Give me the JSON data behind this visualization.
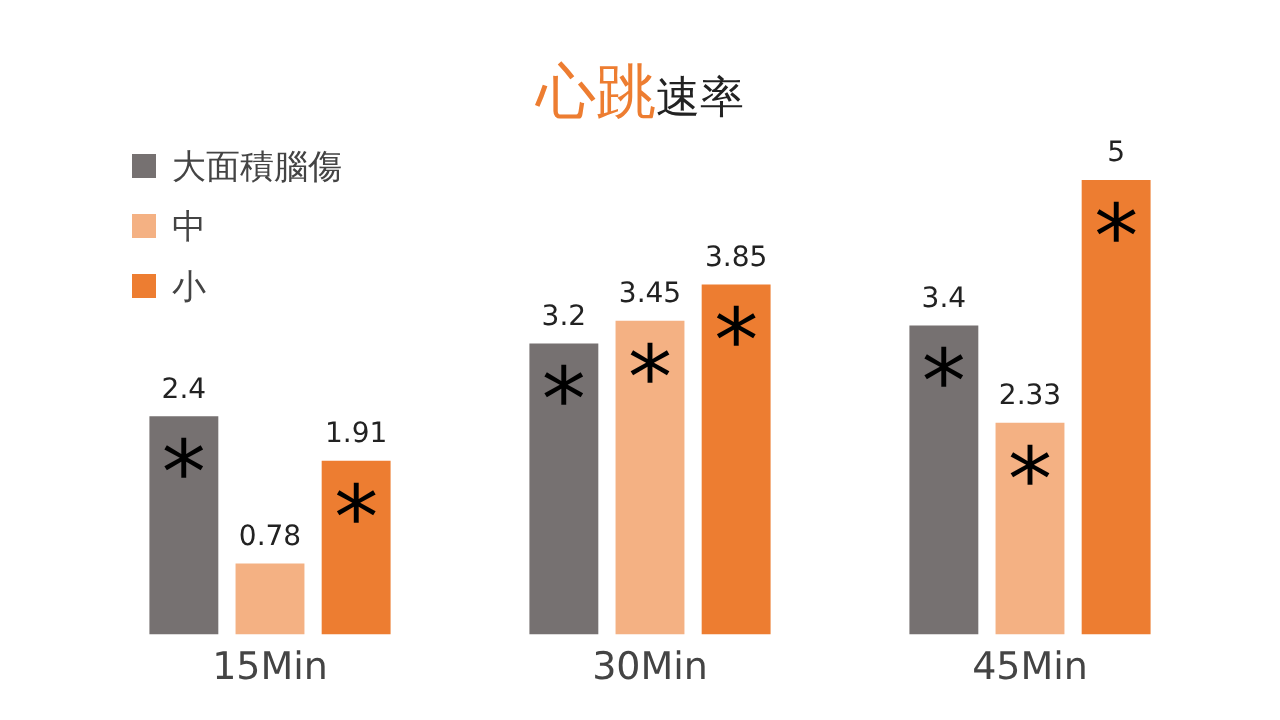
{
  "chart_data": {
    "type": "bar",
    "title": "心跳速率",
    "categories": [
      "15Min",
      "30Min",
      "45Min"
    ],
    "series": [
      {
        "name": "大面積腦傷",
        "color": "#767171",
        "values": [
          2.4,
          3.2,
          3.4
        ]
      },
      {
        "name": "中",
        "color": "#f4b183",
        "values": [
          0.78,
          3.45,
          2.33
        ]
      },
      {
        "name": "小",
        "color": "#ed7d31",
        "values": [
          1.91,
          3.85,
          5
        ]
      }
    ],
    "data_labels": true,
    "legend": "top left",
    "grid": false,
    "tick_labels": "x",
    "annotations": [
      "*",
      "*",
      "*",
      "*",
      "*",
      "*",
      "*",
      "*"
    ]
  }
}
